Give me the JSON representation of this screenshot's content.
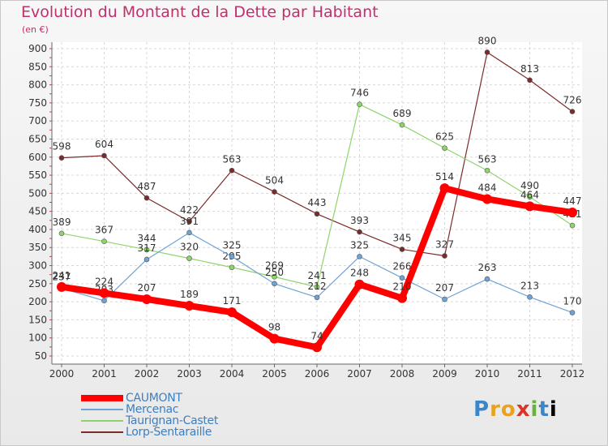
{
  "chart_data": {
    "type": "line",
    "title": "Evolution du Montant de la Dette par Habitant",
    "subtitle": "(en €)",
    "x": [
      "2000",
      "2001",
      "2002",
      "2003",
      "2004",
      "2005",
      "2006",
      "2007",
      "2008",
      "2009",
      "2010",
      "2011",
      "2012"
    ],
    "yticks": [
      50,
      100,
      150,
      200,
      250,
      300,
      350,
      400,
      450,
      500,
      550,
      600,
      650,
      700,
      750,
      800,
      850,
      900
    ],
    "ylim": [
      50,
      900
    ],
    "grid": true,
    "legend_position": "bottom-left",
    "series": [
      {
        "name": "Lorp-Sentaraille",
        "color": "#7a2b2b",
        "width": 1.2,
        "values": [
          598,
          604,
          487,
          422,
          563,
          504,
          443,
          393,
          345,
          327,
          890,
          813,
          726
        ]
      },
      {
        "name": "Taurignan-Castet",
        "color": "#8fd46a",
        "width": 1.2,
        "values": [
          389,
          367,
          344,
          320,
          295,
          269,
          241,
          746,
          689,
          625,
          563,
          490,
          411
        ]
      },
      {
        "name": "Mercenac",
        "color": "#6fa3d4",
        "width": 1.2,
        "values": [
          237,
          203,
          317,
          391,
          325,
          250,
          212,
          325,
          266,
          207,
          263,
          213,
          170
        ]
      },
      {
        "name": "CAUMONT",
        "color": "#ff0000",
        "width": 8,
        "values": [
          241,
          224,
          207,
          189,
          171,
          98,
          74,
          248,
          210,
          514,
          484,
          464,
          447
        ]
      }
    ]
  },
  "legend": [
    "CAUMONT",
    "Mercenac",
    "Taurignan-Castet",
    "Lorp-Sentaraille"
  ],
  "logo": [
    "P",
    "r",
    "o",
    "x",
    "i",
    "t",
    "i"
  ]
}
